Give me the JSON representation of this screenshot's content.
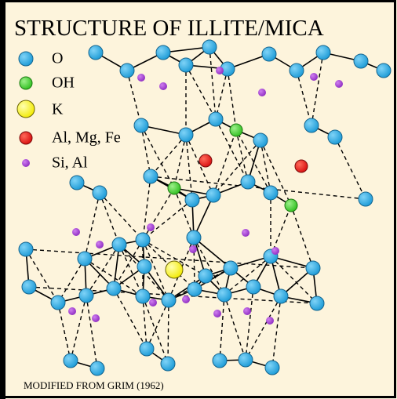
{
  "title": "STRUCTURE OF ILLITE/MICA",
  "legend": [
    {
      "label": "O"
    },
    {
      "label": "OH"
    },
    {
      "label": "K"
    },
    {
      "label": "Al, Mg, Fe"
    },
    {
      "label": "Si, Al"
    }
  ],
  "footer": "MODIFIED FROM GRIM (1962)"
}
